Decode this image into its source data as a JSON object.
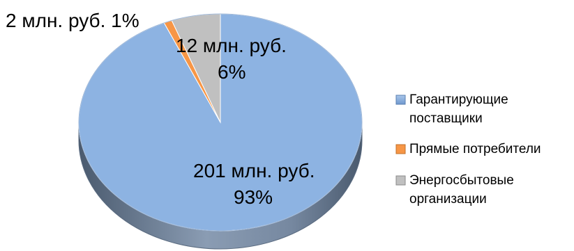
{
  "chart_data": {
    "type": "pie",
    "title": "",
    "series": [
      {
        "categories": [
          "Гарантирующие поставщики",
          "Прямые потребители",
          "Энергосбытовые организации"
        ],
        "values": [
          201,
          2,
          12
        ],
        "percents": [
          93,
          1,
          6
        ],
        "unit": "млн. руб."
      }
    ],
    "slices": [
      {
        "name": "Гарантирующие поставщики",
        "value": 201,
        "percent": 93,
        "color": "#8DB3E2",
        "label_value": "201 млн. руб.",
        "label_percent": "93%",
        "legend_lines": [
          "Гарантирующие",
          "поставщики"
        ]
      },
      {
        "name": "Прямые потребители",
        "value": 2,
        "percent": 1,
        "color": "#F79646",
        "label_value": "2 млн. руб. 1%",
        "label_percent": "",
        "legend_lines": [
          "Прямые потребители"
        ]
      },
      {
        "name": "Энергосбытовые организации",
        "value": 12,
        "percent": 6,
        "color": "#C0C0C0",
        "label_value": "12 млн. руб.",
        "label_percent": "6%",
        "legend_lines": [
          "Энергосбытовые",
          "организации"
        ]
      }
    ],
    "legend_position": "right",
    "style": "3d-pie",
    "edge_color": "#5A6B80"
  }
}
